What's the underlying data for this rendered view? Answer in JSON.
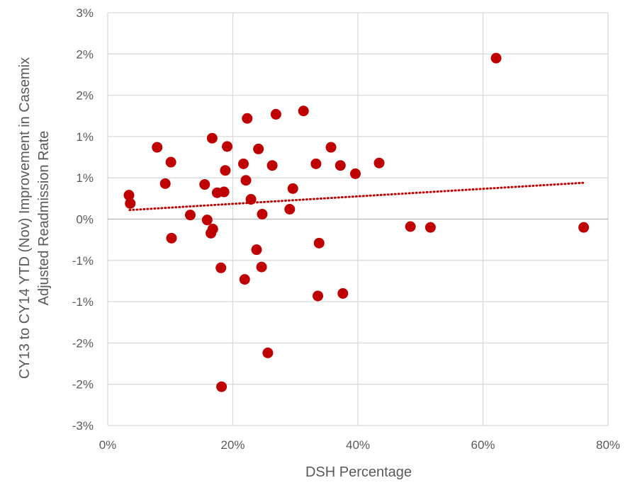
{
  "chart_data": {
    "type": "scatter",
    "title": "",
    "xlabel": "DSH Percentage",
    "ylabel_lines": [
      "CY13 to CY14  YTD (Nov) Improvement in Casemix",
      "Adjusted Readmission Rate"
    ],
    "x_ticks": [
      "0%",
      "20%",
      "40%",
      "60%",
      "80%"
    ],
    "y_ticks": [
      "3%",
      "2%",
      "2%",
      "1%",
      "1%",
      "0%",
      "-1%",
      "-1%",
      "-2%",
      "-2%",
      "-3%"
    ],
    "xlim": [
      0,
      80
    ],
    "ylim": [
      -2.5,
      2.5
    ],
    "grid": true,
    "marker_color": "#C00000",
    "trendline": {
      "style": "dotted",
      "color": "#C00000",
      "x": [
        3.5,
        76
      ],
      "y": [
        0.11,
        0.44
      ]
    },
    "points": [
      {
        "x": 3.4,
        "y": 0.29
      },
      {
        "x": 3.6,
        "y": 0.19
      },
      {
        "x": 7.9,
        "y": 0.87
      },
      {
        "x": 9.2,
        "y": 0.43
      },
      {
        "x": 10.1,
        "y": 0.69
      },
      {
        "x": 10.2,
        "y": -0.23
      },
      {
        "x": 13.2,
        "y": 0.05
      },
      {
        "x": 15.5,
        "y": 0.42
      },
      {
        "x": 15.9,
        "y": -0.01
      },
      {
        "x": 16.5,
        "y": -0.17
      },
      {
        "x": 16.7,
        "y": 0.98
      },
      {
        "x": 16.8,
        "y": -0.12
      },
      {
        "x": 17.5,
        "y": 0.32
      },
      {
        "x": 18.1,
        "y": -0.59
      },
      {
        "x": 18.2,
        "y": -2.03
      },
      {
        "x": 18.6,
        "y": 0.33
      },
      {
        "x": 18.8,
        "y": 0.59
      },
      {
        "x": 19.1,
        "y": 0.88
      },
      {
        "x": 21.7,
        "y": 0.67
      },
      {
        "x": 21.9,
        "y": -0.73
      },
      {
        "x": 22.1,
        "y": 0.47
      },
      {
        "x": 22.3,
        "y": 1.22
      },
      {
        "x": 22.9,
        "y": 0.24
      },
      {
        "x": 23.8,
        "y": -0.37
      },
      {
        "x": 24.1,
        "y": 0.85
      },
      {
        "x": 24.6,
        "y": -0.58
      },
      {
        "x": 24.7,
        "y": 0.06
      },
      {
        "x": 25.6,
        "y": -1.62
      },
      {
        "x": 26.3,
        "y": 0.65
      },
      {
        "x": 26.9,
        "y": 1.27
      },
      {
        "x": 29.1,
        "y": 0.12
      },
      {
        "x": 29.6,
        "y": 0.37
      },
      {
        "x": 31.3,
        "y": 1.31
      },
      {
        "x": 33.3,
        "y": 0.67
      },
      {
        "x": 33.6,
        "y": -0.93
      },
      {
        "x": 33.8,
        "y": -0.29
      },
      {
        "x": 35.7,
        "y": 0.87
      },
      {
        "x": 37.2,
        "y": 0.65
      },
      {
        "x": 37.6,
        "y": -0.9
      },
      {
        "x": 39.6,
        "y": 0.55
      },
      {
        "x": 43.4,
        "y": 0.68
      },
      {
        "x": 48.4,
        "y": -0.09
      },
      {
        "x": 51.6,
        "y": -0.1
      },
      {
        "x": 62.1,
        "y": 1.95
      },
      {
        "x": 76.1,
        "y": -0.1
      }
    ]
  }
}
